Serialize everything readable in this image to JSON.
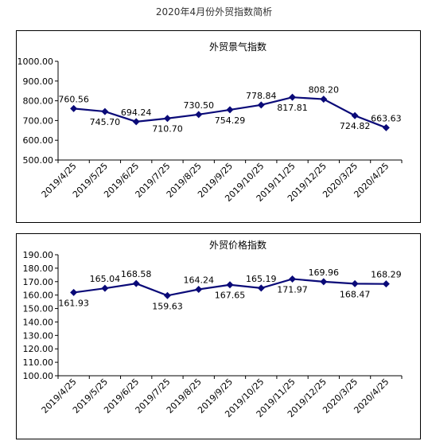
{
  "page_title": "2020年4月份外贸指数简析",
  "chart_data": [
    {
      "type": "line",
      "title": "外贸景气指数",
      "categories": [
        "2019/4/25",
        "2019/5/25",
        "2019/6/25",
        "2019/7/25",
        "2019/8/25",
        "2019/9/25",
        "2019/10/25",
        "2019/11/25",
        "2019/12/25",
        "2020/3/25",
        "2020/4/25"
      ],
      "values": [
        760.56,
        745.7,
        694.24,
        710.7,
        730.5,
        754.29,
        778.84,
        817.81,
        808.2,
        724.82,
        663.63
      ],
      "labels": [
        "760.56",
        "745.70",
        "694.24",
        "710.70",
        "730.50",
        "754.29",
        "778.84",
        "817.81",
        "808.20",
        "724.82",
        "663.63"
      ],
      "yticks": [
        "500.00",
        "600.00",
        "700.00",
        "800.00",
        "900.00",
        "1000.00"
      ],
      "ylim": [
        500,
        1000
      ],
      "label_pos": [
        "above",
        "below",
        "above",
        "below",
        "above",
        "below",
        "above",
        "below",
        "above",
        "below",
        "above"
      ],
      "color": "#0a0a78"
    },
    {
      "type": "line",
      "title": "外贸价格指数",
      "categories": [
        "2019/4/25",
        "2019/5/25",
        "2019/6/25",
        "2019/7/25",
        "2019/8/25",
        "2019/9/25",
        "2019/10/25",
        "2019/11/25",
        "2019/12/25",
        "2020/3/25",
        "2020/4/25"
      ],
      "values": [
        161.93,
        165.04,
        168.58,
        159.63,
        164.24,
        167.65,
        165.19,
        171.97,
        169.96,
        168.47,
        168.29
      ],
      "labels": [
        "161.93",
        "165.04",
        "168.58",
        "159.63",
        "164.24",
        "167.65",
        "165.19",
        "171.97",
        "169.96",
        "168.47",
        "168.29"
      ],
      "yticks": [
        "100.00",
        "110.00",
        "120.00",
        "130.00",
        "140.00",
        "150.00",
        "160.00",
        "170.00",
        "180.00",
        "190.00"
      ],
      "ylim": [
        100,
        190
      ],
      "label_pos": [
        "below",
        "above",
        "above",
        "below",
        "above",
        "below",
        "above",
        "below",
        "above",
        "below",
        "above"
      ],
      "color": "#0a0a78"
    }
  ]
}
